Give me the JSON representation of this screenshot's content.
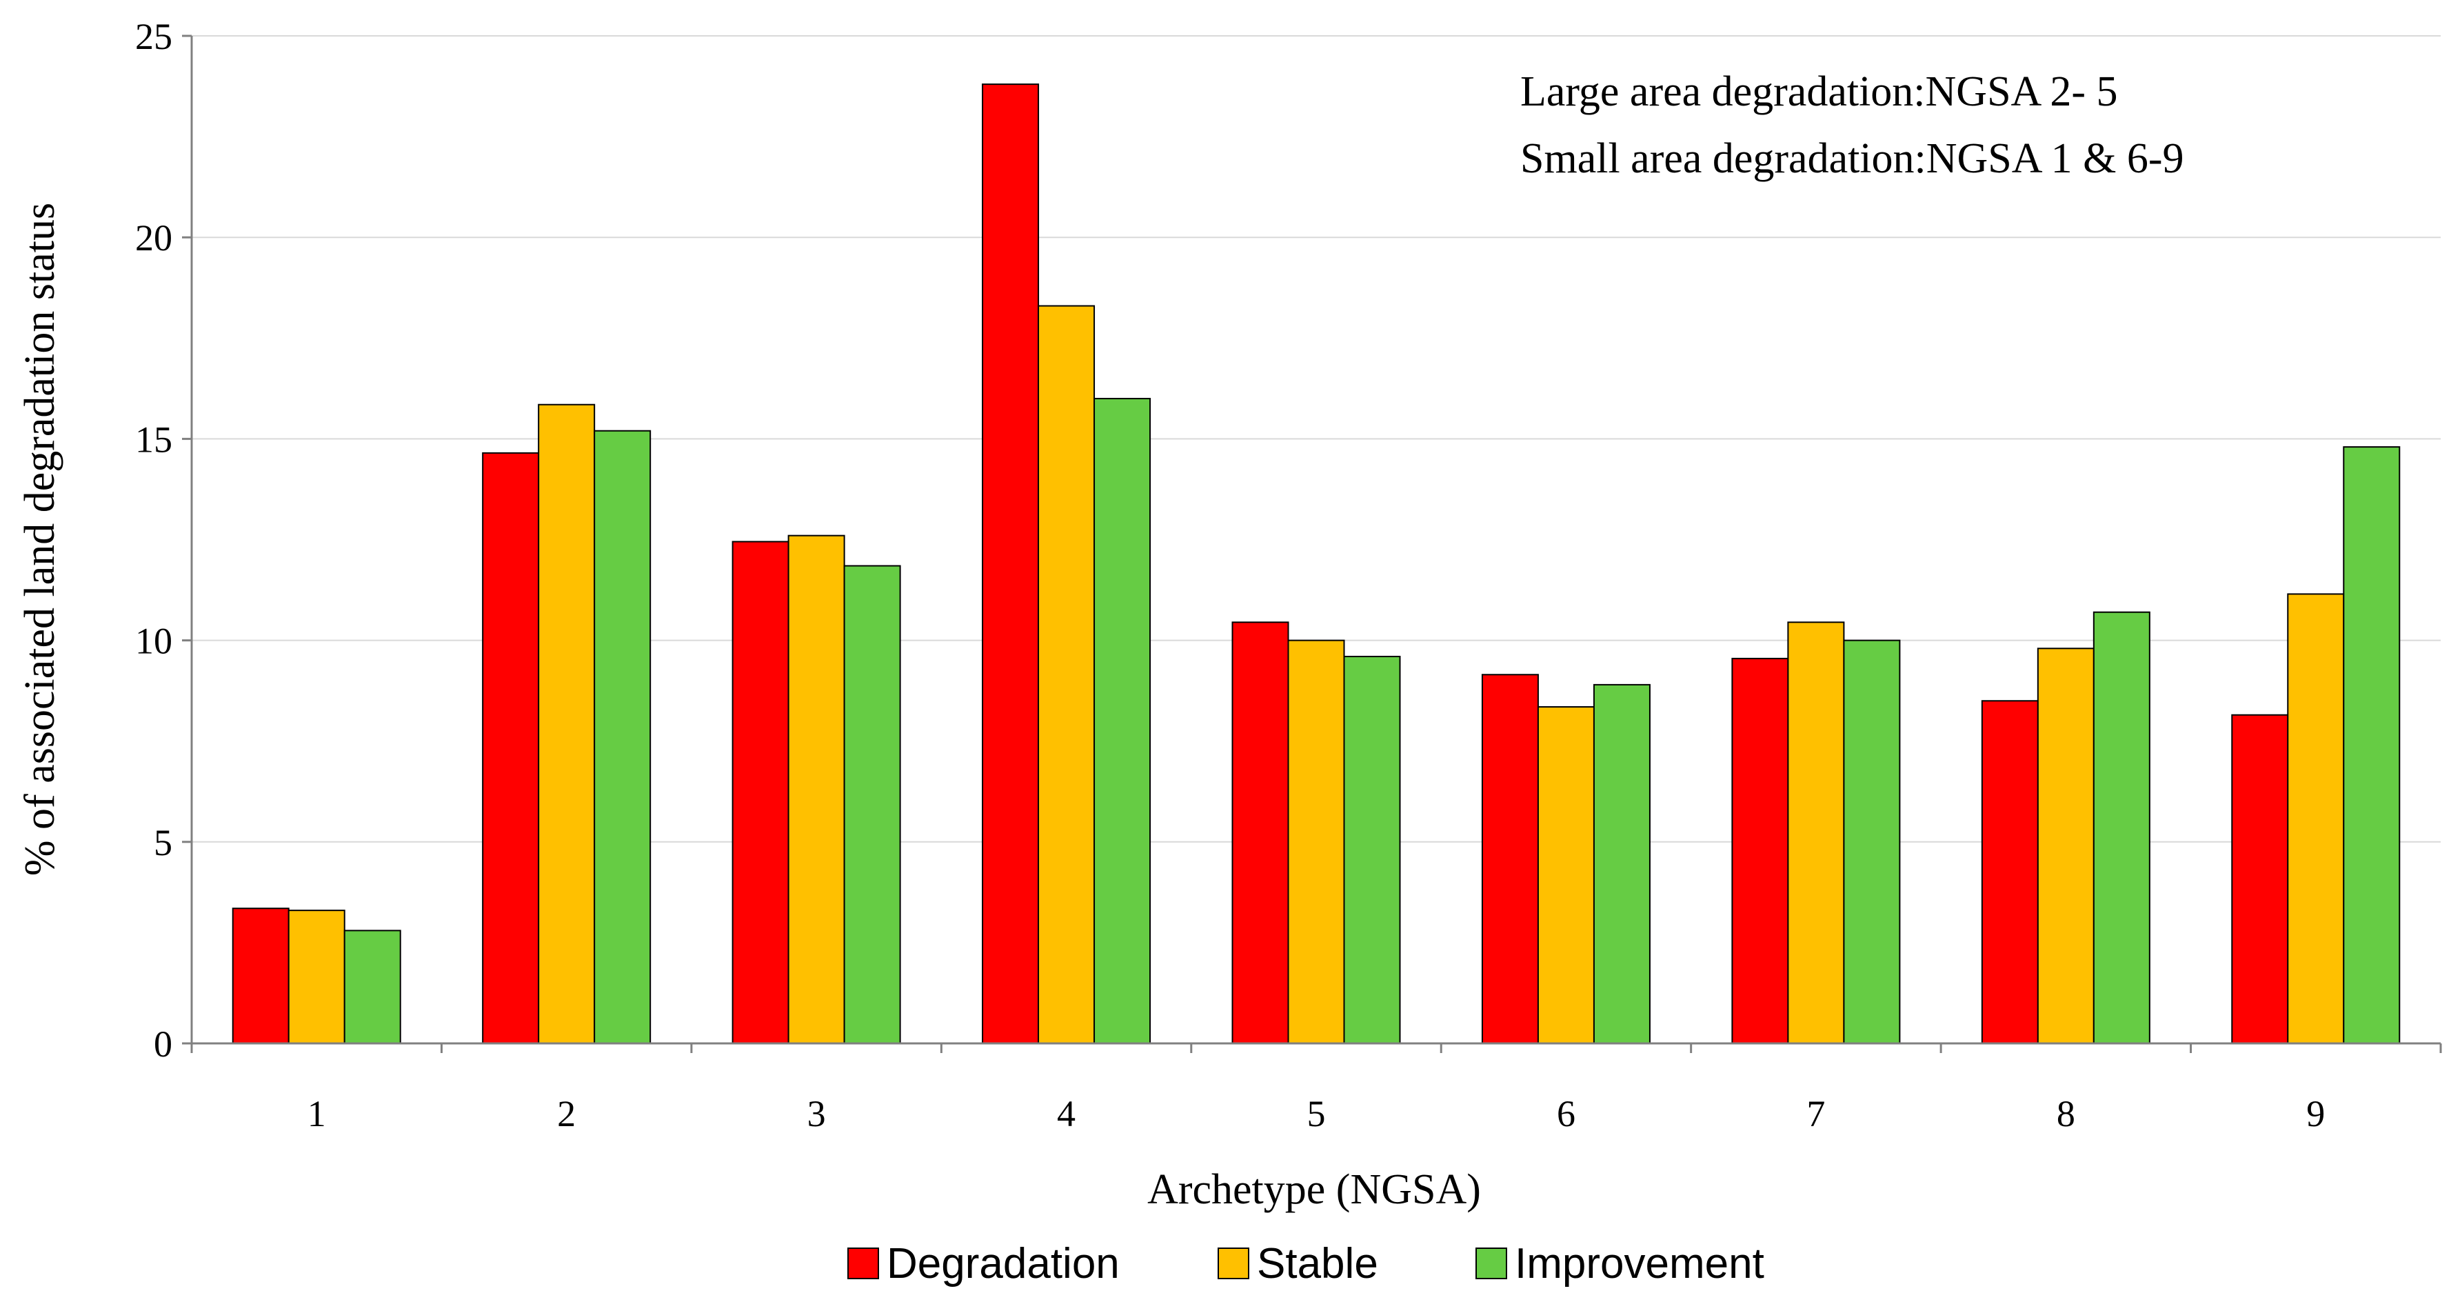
{
  "chart_data": {
    "type": "bar",
    "title": "",
    "xlabel": "Archetype (NGSA)",
    "ylabel": "% of associated land degradation  status",
    "categories": [
      "1",
      "2",
      "3",
      "4",
      "5",
      "6",
      "7",
      "8",
      "9"
    ],
    "ylim": [
      0,
      25
    ],
    "yticks": [
      "0",
      "5",
      "10",
      "15",
      "20",
      "25"
    ],
    "grid": "horizontal",
    "legend_position": "bottom-center",
    "series": [
      {
        "name": "Degradation",
        "color": "#ff0000",
        "values": [
          3.35,
          14.65,
          12.45,
          23.8,
          10.45,
          9.15,
          9.55,
          8.5,
          8.15
        ]
      },
      {
        "name": "Stable",
        "color": "#ffc000",
        "values": [
          3.3,
          15.85,
          12.6,
          18.3,
          10.0,
          8.35,
          10.45,
          9.8,
          11.15
        ]
      },
      {
        "name": "Improvement",
        "color": "#66cc44",
        "values": [
          2.8,
          15.2,
          11.85,
          16.0,
          9.6,
          8.9,
          10.0,
          10.7,
          14.8
        ]
      }
    ],
    "annotations": [
      "Large area degradation:NGSA 2- 5",
      "Small area degradation:NGSA 1 & 6-9"
    ]
  }
}
